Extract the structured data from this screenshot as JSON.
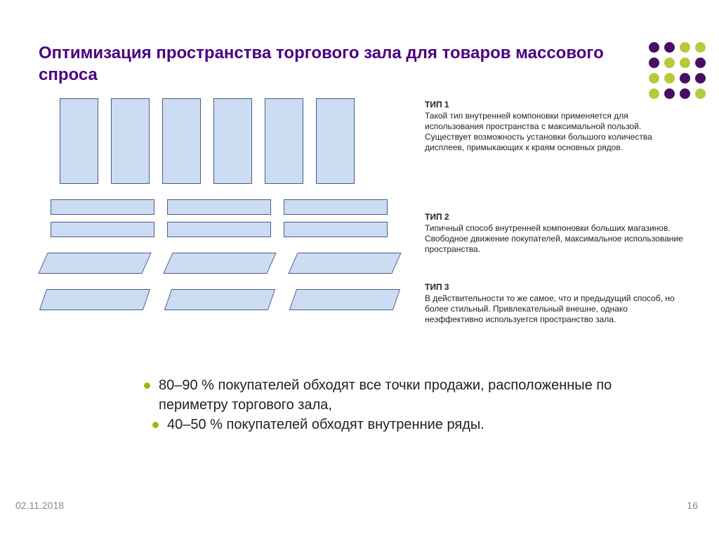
{
  "title": "Оптимизация пространства торгового зала для товаров массового спроса",
  "types": [
    {
      "heading": "ТИП 1",
      "text": "Такой тип внутренней компоновки применяется для использования пространства с максимальной пользой. Существует возможность установки большого количества дисплеев, примыкающих к краям основных рядов."
    },
    {
      "heading": "ТИП 2",
      "text": "Типичный способ внутренней компоновки больших магазинов. Свободное движение покупателей, максимальное использование пространства."
    },
    {
      "heading": "ТИП 3",
      "text": "В действительности то же самое, что и предыдущий способ, но более стильный. Привлекательный внешне, однако неэффективно используется пространство зала."
    }
  ],
  "bullets": [
    "80–90 % покупателей обходят все точки продажи, расположенные по периметру торгового зала,",
    "40–50 % покупателей обходят внутренние ряды."
  ],
  "footer": {
    "date": "02.11.2018",
    "page": "16"
  },
  "shape_style": {
    "fill": "#ccddf3",
    "stroke": "#4a5a8a",
    "type1": {
      "count": 6,
      "width": 55,
      "height": 122,
      "gap": 18
    },
    "type2": {
      "rows": 2,
      "cols": 3,
      "width": 148,
      "height": 22,
      "gap": 18,
      "rowgap": 10
    },
    "type3": {
      "rows": 2,
      "cols": 3,
      "width": 148,
      "height": 30,
      "skew": -24
    }
  },
  "colors": {
    "title": "#4b0082",
    "text": "#222222",
    "bullet_dot": "#9db51a",
    "footer": "#888888",
    "background": "#ffffff"
  },
  "deco_dots": [
    [
      "#4a0d66",
      "#4a0d66",
      "#b7c93f",
      "#b7c93f"
    ],
    [
      "#4a0d66",
      "#b7c93f",
      "#b7c93f",
      "#4a0d66"
    ],
    [
      "#b7c93f",
      "#b7c93f",
      "#4a0d66",
      "#4a0d66"
    ],
    [
      "#b7c93f",
      "#4a0d66",
      "#4a0d66",
      "#b7c93f"
    ]
  ]
}
